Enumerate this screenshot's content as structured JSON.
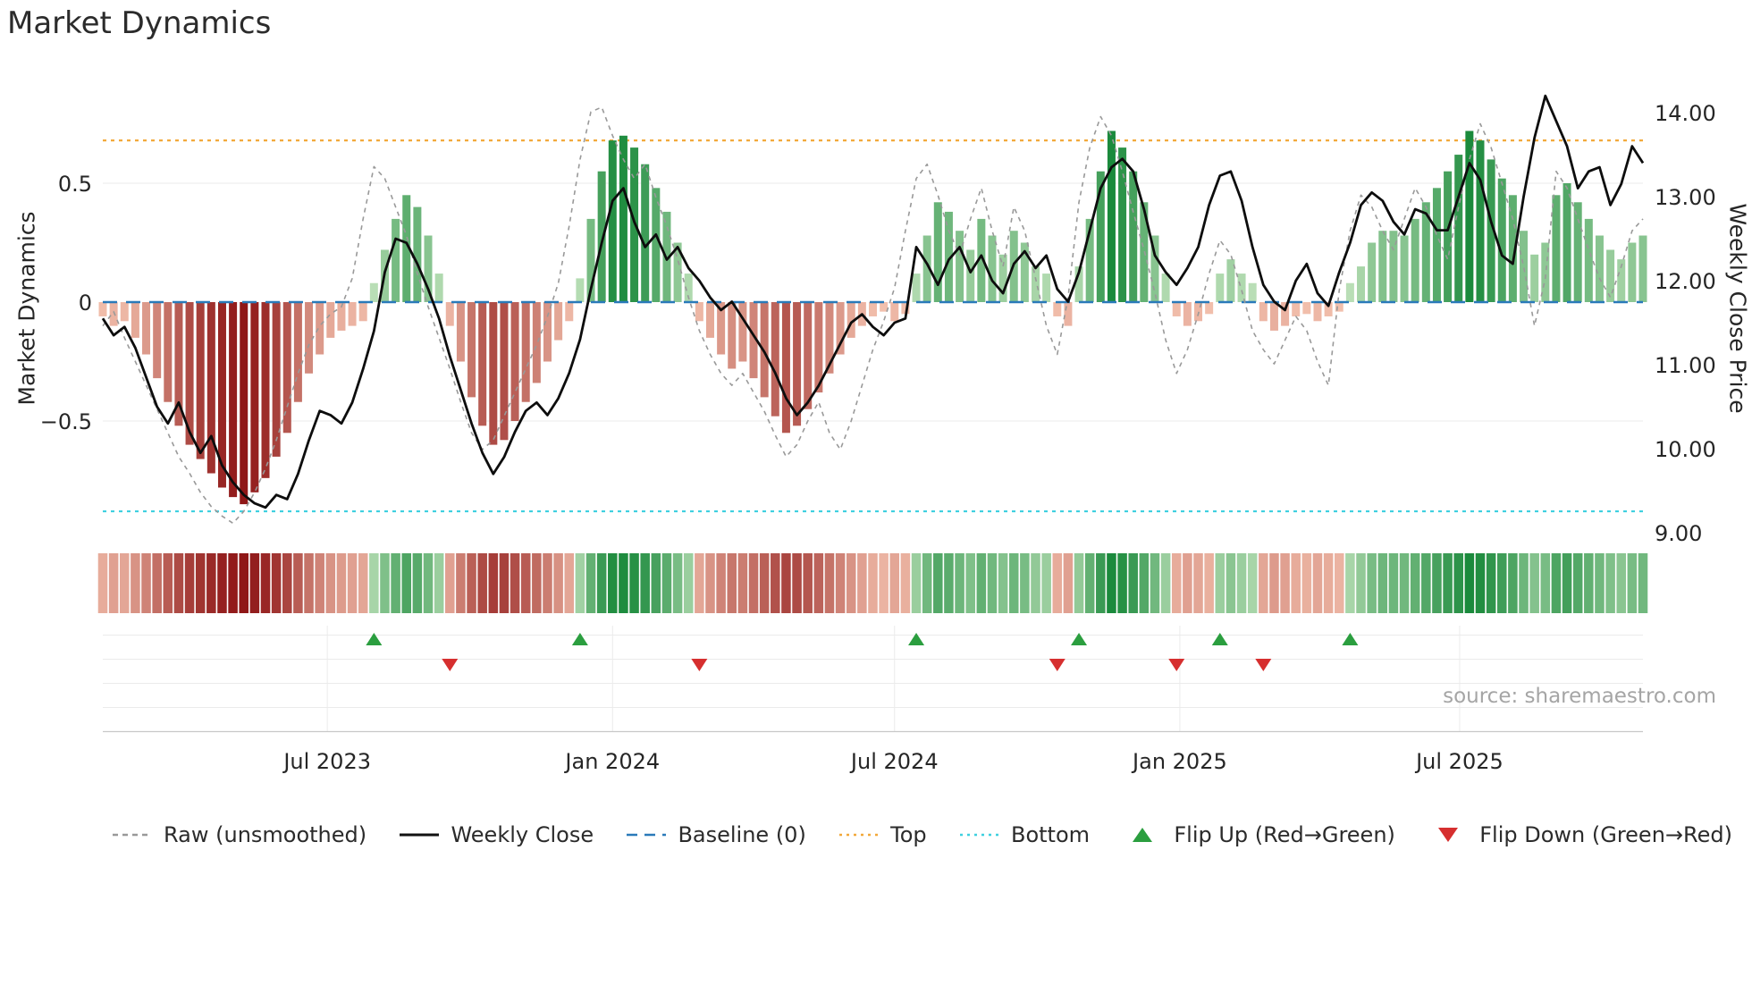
{
  "title": "Market Dynamics",
  "source_text": "source: sharemaestro.com",
  "axes": {
    "left_label": "Market Dynamics",
    "right_label": "Weekly Close Price",
    "left_ticks": [
      {
        "label": "0.5",
        "value": 0.5
      },
      {
        "label": "0",
        "value": 0
      },
      {
        "label": "−0.5",
        "value": -0.5
      }
    ],
    "right_ticks": [
      {
        "label": "14.00",
        "value": 14
      },
      {
        "label": "13.00",
        "value": 13
      },
      {
        "label": "12.00",
        "value": 12
      },
      {
        "label": "11.00",
        "value": 11
      },
      {
        "label": "10.00",
        "value": 10
      },
      {
        "label": "9.00",
        "value": 9
      }
    ],
    "x_ticks": [
      {
        "label": "Jul 2023",
        "week_index": 20.7
      },
      {
        "label": "Jan 2024",
        "week_index": 47.0
      },
      {
        "label": "Jul 2024",
        "week_index": 73.0
      },
      {
        "label": "Jan 2025",
        "week_index": 99.3
      },
      {
        "label": "Jul 2025",
        "week_index": 125.1
      }
    ]
  },
  "colors": {
    "neg_light": "#f7c8b4",
    "neg_dark": "#8f1717",
    "pos_light": "#cde9c5",
    "pos_dark": "#1b8a3c",
    "raw_line": "#999999",
    "close_line": "#0d0d0d",
    "baseline": "#2a7ab9",
    "top_line": "#f2a93b",
    "bottom_line": "#3fd0e0",
    "flip_up": "#2b9e3f",
    "flip_down": "#d62f2f",
    "grid": "#ebebeb",
    "axis_line": "#c8c8c8"
  },
  "legend": [
    {
      "label": "Raw (unsmoothed)",
      "type": "dashed",
      "color": "#999999"
    },
    {
      "label": "Weekly Close",
      "type": "solid",
      "color": "#111111"
    },
    {
      "label": "Baseline (0)",
      "type": "dashed-long",
      "color": "#2a7ab9"
    },
    {
      "label": "Top",
      "type": "dotted",
      "color": "#f2a93b"
    },
    {
      "label": "Bottom",
      "type": "dotted",
      "color": "#3fd0e0"
    },
    {
      "label": "Flip Up (Red→Green)",
      "type": "triangle-up",
      "color": "#2b9e3f"
    },
    {
      "label": "Flip Down (Green→Red)",
      "type": "triangle-down",
      "color": "#d62f2f"
    }
  ],
  "chart_data": {
    "type": "bar",
    "title": "Market Dynamics",
    "x_start_date": "2023-02-06",
    "x_freq": "weekly",
    "weeks": 143,
    "left_ylim": [
      -1.0,
      0.95
    ],
    "right_ylim": [
      9.0,
      14.0
    ],
    "baseline": 0,
    "top_threshold": 0.68,
    "bottom_threshold": -0.88,
    "oscillator": [
      -0.06,
      -0.1,
      -0.08,
      -0.15,
      -0.22,
      -0.32,
      -0.42,
      -0.52,
      -0.6,
      -0.66,
      -0.72,
      -0.78,
      -0.82,
      -0.85,
      -0.8,
      -0.74,
      -0.65,
      -0.55,
      -0.42,
      -0.3,
      -0.22,
      -0.15,
      -0.12,
      -0.1,
      -0.08,
      0.08,
      0.22,
      0.35,
      0.45,
      0.4,
      0.28,
      0.12,
      -0.1,
      -0.25,
      -0.4,
      -0.52,
      -0.6,
      -0.58,
      -0.5,
      -0.42,
      -0.34,
      -0.25,
      -0.16,
      -0.08,
      0.1,
      0.35,
      0.55,
      0.68,
      0.7,
      0.65,
      0.58,
      0.48,
      0.38,
      0.25,
      0.12,
      -0.08,
      -0.15,
      -0.22,
      -0.28,
      -0.25,
      -0.32,
      -0.4,
      -0.48,
      -0.55,
      -0.52,
      -0.45,
      -0.38,
      -0.3,
      -0.22,
      -0.15,
      -0.1,
      -0.06,
      -0.04,
      -0.08,
      -0.05,
      0.12,
      0.28,
      0.42,
      0.38,
      0.3,
      0.22,
      0.35,
      0.28,
      0.2,
      0.3,
      0.25,
      0.15,
      0.12,
      -0.06,
      -0.1,
      0.15,
      0.35,
      0.55,
      0.72,
      0.65,
      0.55,
      0.42,
      0.28,
      0.12,
      -0.06,
      -0.1,
      -0.08,
      -0.05,
      0.12,
      0.18,
      0.12,
      0.08,
      -0.08,
      -0.12,
      -0.1,
      -0.06,
      -0.05,
      -0.08,
      -0.06,
      -0.04,
      0.08,
      0.15,
      0.25,
      0.3,
      0.3,
      0.28,
      0.35,
      0.42,
      0.48,
      0.55,
      0.62,
      0.72,
      0.68,
      0.6,
      0.52,
      0.45,
      0.3,
      0.2,
      0.25,
      0.45,
      0.5,
      0.42,
      0.35,
      0.28,
      0.22,
      0.18,
      0.25,
      0.28
    ],
    "raw": [
      -0.1,
      -0.04,
      -0.15,
      -0.25,
      -0.35,
      -0.45,
      -0.55,
      -0.65,
      -0.72,
      -0.8,
      -0.86,
      -0.9,
      -0.93,
      -0.88,
      -0.8,
      -0.7,
      -0.58,
      -0.44,
      -0.3,
      -0.18,
      -0.1,
      -0.05,
      -0.02,
      0.1,
      0.35,
      0.57,
      0.52,
      0.4,
      0.28,
      0.12,
      -0.02,
      -0.15,
      -0.28,
      -0.42,
      -0.55,
      -0.62,
      -0.58,
      -0.48,
      -0.38,
      -0.28,
      -0.18,
      -0.06,
      0.08,
      0.32,
      0.6,
      0.8,
      0.82,
      0.7,
      0.6,
      0.52,
      0.58,
      0.44,
      0.32,
      0.18,
      0.02,
      -0.12,
      -0.22,
      -0.3,
      -0.35,
      -0.3,
      -0.38,
      -0.46,
      -0.56,
      -0.65,
      -0.6,
      -0.5,
      -0.42,
      -0.55,
      -0.62,
      -0.5,
      -0.35,
      -0.2,
      -0.08,
      0.06,
      0.3,
      0.52,
      0.58,
      0.45,
      0.3,
      0.2,
      0.35,
      0.48,
      0.3,
      0.15,
      0.4,
      0.3,
      0.1,
      -0.1,
      -0.22,
      0.02,
      0.42,
      0.65,
      0.78,
      0.7,
      0.55,
      0.38,
      0.22,
      0.04,
      -0.16,
      -0.3,
      -0.2,
      -0.05,
      0.12,
      0.26,
      0.2,
      0.05,
      -0.12,
      -0.2,
      -0.26,
      -0.16,
      -0.06,
      -0.12,
      -0.25,
      -0.35,
      0.05,
      0.3,
      0.45,
      0.4,
      0.3,
      0.22,
      0.35,
      0.48,
      0.4,
      0.28,
      0.18,
      0.4,
      0.6,
      0.75,
      0.65,
      0.5,
      0.35,
      0.15,
      -0.1,
      0.1,
      0.55,
      0.48,
      0.35,
      0.22,
      0.1,
      0.02,
      0.15,
      0.3,
      0.35
    ],
    "weekly_close": [
      11.55,
      11.35,
      11.45,
      11.2,
      10.85,
      10.5,
      10.3,
      10.55,
      10.2,
      9.95,
      10.15,
      9.8,
      9.6,
      9.45,
      9.35,
      9.3,
      9.45,
      9.4,
      9.7,
      10.1,
      10.45,
      10.4,
      10.3,
      10.55,
      10.95,
      11.4,
      12.1,
      12.5,
      12.45,
      12.2,
      11.9,
      11.55,
      11.1,
      10.7,
      10.3,
      9.95,
      9.7,
      9.9,
      10.2,
      10.45,
      10.55,
      10.4,
      10.6,
      10.9,
      11.3,
      11.9,
      12.45,
      12.95,
      13.1,
      12.7,
      12.4,
      12.55,
      12.25,
      12.4,
      12.15,
      12.0,
      11.8,
      11.65,
      11.75,
      11.55,
      11.35,
      11.15,
      10.9,
      10.6,
      10.4,
      10.55,
      10.75,
      11.0,
      11.25,
      11.5,
      11.6,
      11.45,
      11.35,
      11.5,
      11.55,
      12.4,
      12.2,
      11.95,
      12.25,
      12.4,
      12.1,
      12.3,
      12.0,
      11.85,
      12.2,
      12.35,
      12.15,
      12.3,
      11.9,
      11.75,
      12.1,
      12.6,
      13.1,
      13.35,
      13.45,
      13.3,
      12.85,
      12.3,
      12.1,
      11.95,
      12.15,
      12.4,
      12.9,
      13.25,
      13.3,
      12.95,
      12.4,
      11.95,
      11.75,
      11.65,
      12.0,
      12.2,
      11.85,
      11.7,
      12.1,
      12.45,
      12.9,
      13.05,
      12.95,
      12.7,
      12.55,
      12.85,
      12.8,
      12.6,
      12.6,
      13.0,
      13.4,
      13.2,
      12.7,
      12.3,
      12.2,
      13.0,
      13.7,
      14.2,
      13.9,
      13.6,
      13.1,
      13.3,
      13.35,
      12.9,
      13.15,
      13.6,
      13.4
    ],
    "flip_up_weeks": [
      25,
      44,
      75,
      90,
      103,
      115
    ],
    "flip_down_weeks": [
      32,
      55,
      88,
      99,
      107
    ]
  }
}
